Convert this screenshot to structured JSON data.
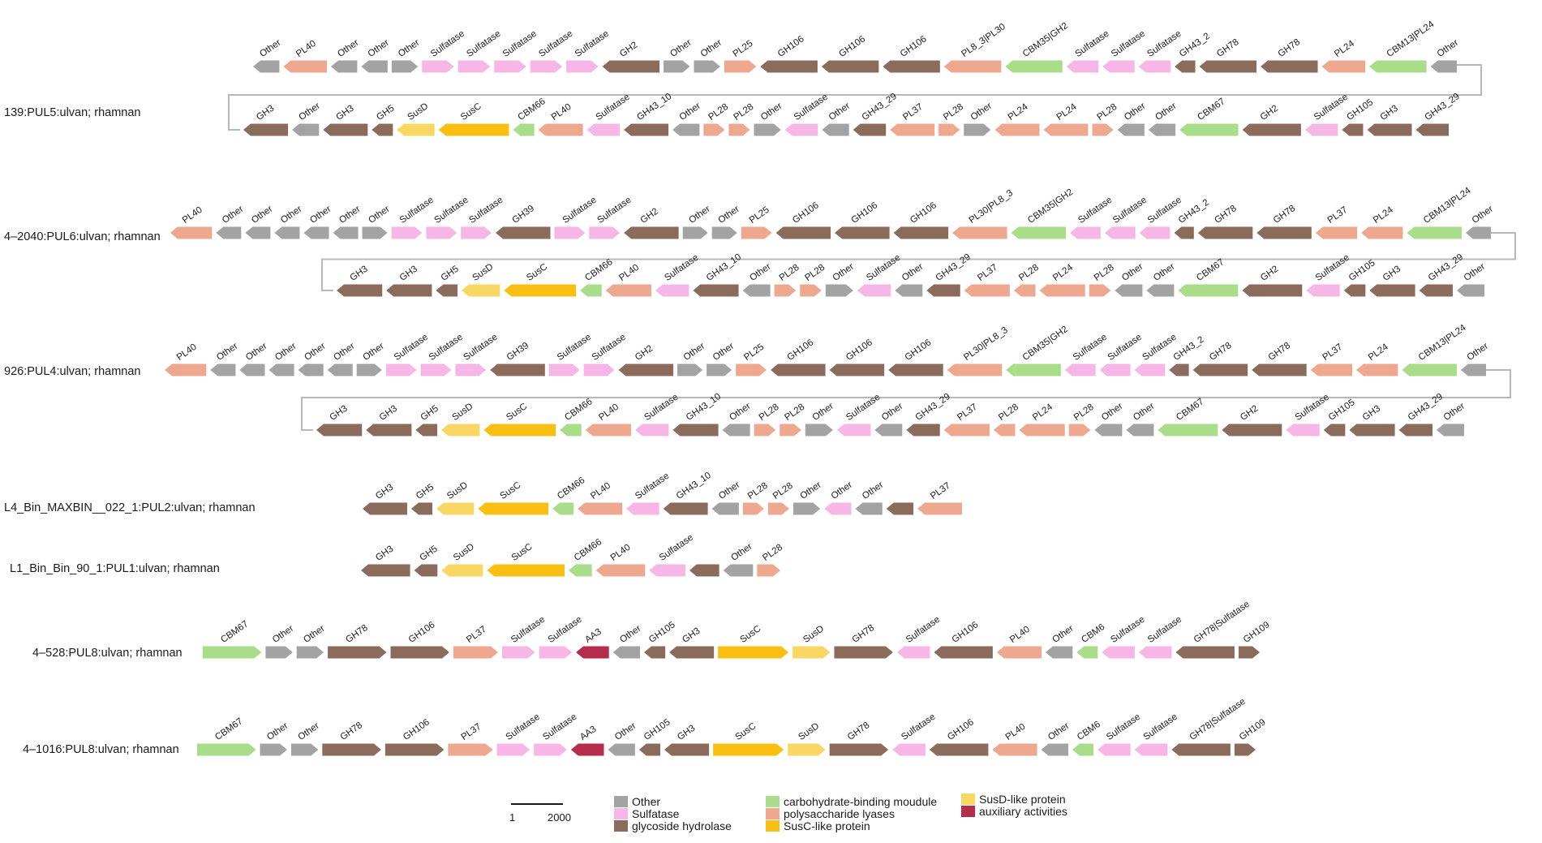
{
  "colors": {
    "Other": "#a3a3a3",
    "Sulfatase": "#f6b7e6",
    "GH": "#8b6b5c",
    "CBM": "#a9dd8a",
    "PL": "#eea88f",
    "SusC": "#f9c013",
    "SusD": "#f8d765",
    "AA": "#b52c4c",
    "connector": "#b8b8b8"
  },
  "pul_labels": [
    "139:PUL5:ulvan; rhamnan",
    "4–2040:PUL6:ulvan; rhamnan",
    "926:PUL4:ulvan; rhamnan",
    "L4_Bin_MAXBIN__022_1:PUL2:ulvan; rhamnan",
    "L1_Bin_Bin_90_1:PUL1:ulvan; rhamnan",
    "4–528:PUL8:ulvan; rhamnan",
    "4–1016:PUL8:ulvan; rhamnan"
  ],
  "loci": {
    "pul5_row1": [
      [
        "Other",
        "Other",
        "L"
      ],
      [
        "PL40",
        "PL",
        "L"
      ],
      [
        "Other",
        "Other",
        "L"
      ],
      [
        "Other",
        "Other",
        "L"
      ],
      [
        "Other",
        "Other",
        "R"
      ],
      [
        "Sulfatase",
        "Sulfatase",
        "R"
      ],
      [
        "Sulfatase",
        "Sulfatase",
        "R"
      ],
      [
        "Sulfatase",
        "Sulfatase",
        "R"
      ],
      [
        "Sulfatase",
        "Sulfatase",
        "R"
      ],
      [
        "Sulfatase",
        "Sulfatase",
        "R"
      ],
      [
        "GH2",
        "GH",
        "L"
      ],
      [
        "Other",
        "Other",
        "R"
      ],
      [
        "Other",
        "Other",
        "R"
      ],
      [
        "PL25",
        "PL",
        "R"
      ],
      [
        "GH106",
        "GH",
        "L"
      ],
      [
        "GH106",
        "GH",
        "L"
      ],
      [
        "GH106",
        "GH",
        "L"
      ],
      [
        "PL8_3|PL30",
        "PL",
        "L"
      ],
      [
        "CBM35|GH2",
        "CBM",
        "L"
      ],
      [
        "Sulfatase",
        "Sulfatase",
        "L"
      ],
      [
        "Sulfatase",
        "Sulfatase",
        "L"
      ],
      [
        "Sulfatase",
        "Sulfatase",
        "L"
      ],
      [
        "GH43_2",
        "GH",
        "L"
      ],
      [
        "GH78",
        "GH",
        "L"
      ],
      [
        "GH78",
        "GH",
        "L"
      ],
      [
        "PL24",
        "PL",
        "L"
      ],
      [
        "CBM13|PL24",
        "CBM",
        "L"
      ],
      [
        "Other",
        "Other",
        "L"
      ]
    ],
    "pul5_row2": [
      [
        "GH3",
        "GH",
        "L"
      ],
      [
        "Other",
        "Other",
        "L"
      ],
      [
        "GH3",
        "GH",
        "L"
      ],
      [
        "GH5",
        "GH",
        "L"
      ],
      [
        "SusD",
        "SusD",
        "L"
      ],
      [
        "SusC",
        "SusC",
        "L"
      ],
      [
        "CBM66",
        "CBM",
        "L"
      ],
      [
        "PL40",
        "PL",
        "L"
      ],
      [
        "Sulfatase",
        "Sulfatase",
        "L"
      ],
      [
        "GH43_10",
        "GH",
        "L"
      ],
      [
        "Other",
        "Other",
        "L"
      ],
      [
        "PL28",
        "PL",
        "R"
      ],
      [
        "PL28",
        "PL",
        "R"
      ],
      [
        "Other",
        "Other",
        "R"
      ],
      [
        "Sulfatase",
        "Sulfatase",
        "L"
      ],
      [
        "Other",
        "Other",
        "L"
      ],
      [
        "GH43_29",
        "GH",
        "L"
      ],
      [
        "PL37",
        "PL",
        "L"
      ],
      [
        "PL28",
        "PL",
        "R"
      ],
      [
        "Other",
        "Other",
        "R"
      ],
      [
        "PL24",
        "PL",
        "L"
      ],
      [
        "PL24",
        "PL",
        "L"
      ],
      [
        "PL28",
        "PL",
        "R"
      ],
      [
        "Other",
        "Other",
        "L"
      ],
      [
        "Other",
        "Other",
        "L"
      ],
      [
        "CBM67",
        "CBM",
        "L"
      ],
      [
        "GH2",
        "GH",
        "L"
      ],
      [
        "Sulfatase",
        "Sulfatase",
        "L"
      ],
      [
        "GH105",
        "GH",
        "L"
      ],
      [
        "GH3",
        "GH",
        "L"
      ],
      [
        "GH43_29",
        "GH",
        "L"
      ]
    ],
    "pul6_row1": [
      [
        "PL40",
        "PL",
        "L"
      ],
      [
        "Other",
        "Other",
        "L"
      ],
      [
        "Other",
        "Other",
        "L"
      ],
      [
        "Other",
        "Other",
        "L"
      ],
      [
        "Other",
        "Other",
        "L"
      ],
      [
        "Other",
        "Other",
        "L"
      ],
      [
        "Other",
        "Other",
        "R"
      ],
      [
        "Sulfatase",
        "Sulfatase",
        "R"
      ],
      [
        "Sulfatase",
        "Sulfatase",
        "R"
      ],
      [
        "Sulfatase",
        "Sulfatase",
        "R"
      ],
      [
        "GH39",
        "GH",
        "L"
      ],
      [
        "Sulfatase",
        "Sulfatase",
        "R"
      ],
      [
        "Sulfatase",
        "Sulfatase",
        "R"
      ],
      [
        "GH2",
        "GH",
        "L"
      ],
      [
        "Other",
        "Other",
        "R"
      ],
      [
        "Other",
        "Other",
        "R"
      ],
      [
        "PL25",
        "PL",
        "R"
      ],
      [
        "GH106",
        "GH",
        "L"
      ],
      [
        "GH106",
        "GH",
        "L"
      ],
      [
        "GH106",
        "GH",
        "L"
      ],
      [
        "PL30|PL8_3",
        "PL",
        "L"
      ],
      [
        "CBM35|GH2",
        "CBM",
        "L"
      ],
      [
        "Sulfatase",
        "Sulfatase",
        "L"
      ],
      [
        "Sulfatase",
        "Sulfatase",
        "L"
      ],
      [
        "Sulfatase",
        "Sulfatase",
        "L"
      ],
      [
        "GH43_2",
        "GH",
        "L"
      ],
      [
        "GH78",
        "GH",
        "L"
      ],
      [
        "GH78",
        "GH",
        "L"
      ],
      [
        "PL37",
        "PL",
        "L"
      ],
      [
        "PL24",
        "PL",
        "L"
      ],
      [
        "CBM13|PL24",
        "CBM",
        "L"
      ],
      [
        "Other",
        "Other",
        "L"
      ]
    ],
    "pul6_row2": [
      [
        "GH3",
        "GH",
        "L"
      ],
      [
        "GH3",
        "GH",
        "L"
      ],
      [
        "GH5",
        "GH",
        "L"
      ],
      [
        "SusD",
        "SusD",
        "L"
      ],
      [
        "SusC",
        "SusC",
        "L"
      ],
      [
        "CBM66",
        "CBM",
        "L"
      ],
      [
        "PL40",
        "PL",
        "L"
      ],
      [
        "Sulfatase",
        "Sulfatase",
        "L"
      ],
      [
        "GH43_10",
        "GH",
        "L"
      ],
      [
        "Other",
        "Other",
        "L"
      ],
      [
        "PL28",
        "PL",
        "R"
      ],
      [
        "PL28",
        "PL",
        "R"
      ],
      [
        "Other",
        "Other",
        "R"
      ],
      [
        "Sulfatase",
        "Sulfatase",
        "L"
      ],
      [
        "Other",
        "Other",
        "L"
      ],
      [
        "GH43_29",
        "GH",
        "L"
      ],
      [
        "PL37",
        "PL",
        "L"
      ],
      [
        "PL28",
        "PL",
        "L"
      ],
      [
        "PL24",
        "PL",
        "L"
      ],
      [
        "PL28",
        "PL",
        "R"
      ],
      [
        "Other",
        "Other",
        "L"
      ],
      [
        "Other",
        "Other",
        "L"
      ],
      [
        "CBM67",
        "CBM",
        "L"
      ],
      [
        "GH2",
        "GH",
        "L"
      ],
      [
        "Sulfatase",
        "Sulfatase",
        "L"
      ],
      [
        "GH105",
        "GH",
        "L"
      ],
      [
        "GH3",
        "GH",
        "L"
      ],
      [
        "GH43_29",
        "GH",
        "L"
      ],
      [
        "Other",
        "Other",
        "L"
      ]
    ],
    "pul4_row1": [
      [
        "PL40",
        "PL",
        "L"
      ],
      [
        "Other",
        "Other",
        "L"
      ],
      [
        "Other",
        "Other",
        "L"
      ],
      [
        "Other",
        "Other",
        "L"
      ],
      [
        "Other",
        "Other",
        "L"
      ],
      [
        "Other",
        "Other",
        "L"
      ],
      [
        "Other",
        "Other",
        "R"
      ],
      [
        "Sulfatase",
        "Sulfatase",
        "R"
      ],
      [
        "Sulfatase",
        "Sulfatase",
        "R"
      ],
      [
        "Sulfatase",
        "Sulfatase",
        "R"
      ],
      [
        "GH39",
        "GH",
        "L"
      ],
      [
        "Sulfatase",
        "Sulfatase",
        "R"
      ],
      [
        "Sulfatase",
        "Sulfatase",
        "R"
      ],
      [
        "GH2",
        "GH",
        "L"
      ],
      [
        "Other",
        "Other",
        "R"
      ],
      [
        "Other",
        "Other",
        "R"
      ],
      [
        "PL25",
        "PL",
        "R"
      ],
      [
        "GH106",
        "GH",
        "L"
      ],
      [
        "GH106",
        "GH",
        "L"
      ],
      [
        "GH106",
        "GH",
        "L"
      ],
      [
        "PL30|PL8_3",
        "PL",
        "L"
      ],
      [
        "CBM35|GH2",
        "CBM",
        "L"
      ],
      [
        "Sulfatase",
        "Sulfatase",
        "L"
      ],
      [
        "Sulfatase",
        "Sulfatase",
        "L"
      ],
      [
        "Sulfatase",
        "Sulfatase",
        "L"
      ],
      [
        "GH43_2",
        "GH",
        "L"
      ],
      [
        "GH78",
        "GH",
        "L"
      ],
      [
        "GH78",
        "GH",
        "L"
      ],
      [
        "PL37",
        "PL",
        "L"
      ],
      [
        "PL24",
        "PL",
        "L"
      ],
      [
        "CBM13|PL24",
        "CBM",
        "L"
      ],
      [
        "Other",
        "Other",
        "L"
      ]
    ],
    "pul4_row2": [
      [
        "GH3",
        "GH",
        "L"
      ],
      [
        "GH3",
        "GH",
        "L"
      ],
      [
        "GH5",
        "GH",
        "L"
      ],
      [
        "SusD",
        "SusD",
        "L"
      ],
      [
        "SusC",
        "SusC",
        "L"
      ],
      [
        "CBM66",
        "CBM",
        "L"
      ],
      [
        "PL40",
        "PL",
        "L"
      ],
      [
        "Sulfatase",
        "Sulfatase",
        "L"
      ],
      [
        "GH43_10",
        "GH",
        "L"
      ],
      [
        "Other",
        "Other",
        "L"
      ],
      [
        "PL28",
        "PL",
        "R"
      ],
      [
        "PL28",
        "PL",
        "R"
      ],
      [
        "Other",
        "Other",
        "R"
      ],
      [
        "Sulfatase",
        "Sulfatase",
        "L"
      ],
      [
        "Other",
        "Other",
        "L"
      ],
      [
        "GH43_29",
        "GH",
        "L"
      ],
      [
        "PL37",
        "PL",
        "L"
      ],
      [
        "PL28",
        "PL",
        "L"
      ],
      [
        "PL24",
        "PL",
        "L"
      ],
      [
        "PL28",
        "PL",
        "R"
      ],
      [
        "Other",
        "Other",
        "L"
      ],
      [
        "Other",
        "Other",
        "L"
      ],
      [
        "CBM67",
        "CBM",
        "L"
      ],
      [
        "GH2",
        "GH",
        "L"
      ],
      [
        "Sulfatase",
        "Sulfatase",
        "L"
      ],
      [
        "GH105",
        "GH",
        "L"
      ],
      [
        "GH3",
        "GH",
        "L"
      ],
      [
        "GH43_29",
        "GH",
        "L"
      ],
      [
        "Other",
        "Other",
        "L"
      ]
    ],
    "pul2": [
      [
        "GH3",
        "GH",
        "L"
      ],
      [
        "GH5",
        "GH",
        "L"
      ],
      [
        "SusD",
        "SusD",
        "L"
      ],
      [
        "SusC",
        "SusC",
        "L"
      ],
      [
        "CBM66",
        "CBM",
        "L"
      ],
      [
        "PL40",
        "PL",
        "L"
      ],
      [
        "Sulfatase",
        "Sulfatase",
        "L"
      ],
      [
        "GH43_10",
        "GH",
        "L"
      ],
      [
        "Other",
        "Other",
        "L"
      ],
      [
        "PL28",
        "PL",
        "R"
      ],
      [
        "PL28",
        "PL",
        "R"
      ],
      [
        "Other",
        "Other",
        "R"
      ],
      [
        "Other",
        "Sulfatase",
        "L"
      ],
      [
        "Other",
        "Other",
        "L"
      ],
      [
        "",
        "GH",
        "L"
      ],
      [
        "PL37",
        "PL",
        "L"
      ]
    ],
    "pul1": [
      [
        "GH3",
        "GH",
        "L"
      ],
      [
        "GH5",
        "GH",
        "L"
      ],
      [
        "SusD",
        "SusD",
        "L"
      ],
      [
        "SusC",
        "SusC",
        "L"
      ],
      [
        "CBM66",
        "CBM",
        "L"
      ],
      [
        "PL40",
        "PL",
        "L"
      ],
      [
        "Sulfatase",
        "Sulfatase",
        "L"
      ],
      [
        "",
        "GH",
        "L"
      ],
      [
        "Other",
        "Other",
        "L"
      ],
      [
        "PL28",
        "PL",
        "R"
      ]
    ],
    "pul8a": [
      [
        "CBM67",
        "CBM",
        "R"
      ],
      [
        "Other",
        "Other",
        "R"
      ],
      [
        "Other",
        "Other",
        "R"
      ],
      [
        "GH78",
        "GH",
        "R"
      ],
      [
        "GH106",
        "GH",
        "R"
      ],
      [
        "PL37",
        "PL",
        "R"
      ],
      [
        "Sulfatase",
        "Sulfatase",
        "R"
      ],
      [
        "Sulfatase",
        "Sulfatase",
        "R"
      ],
      [
        "AA3",
        "AA",
        "L"
      ],
      [
        "Other",
        "Other",
        "L"
      ],
      [
        "GH105",
        "GH",
        "L"
      ],
      [
        "GH3",
        "GH",
        "L"
      ],
      [
        "SusC",
        "SusC",
        "R"
      ],
      [
        "SusD",
        "SusD",
        "R"
      ],
      [
        "GH78",
        "GH",
        "R"
      ],
      [
        "Sulfatase",
        "Sulfatase",
        "L"
      ],
      [
        "GH106",
        "GH",
        "L"
      ],
      [
        "PL40",
        "PL",
        "L"
      ],
      [
        "Other",
        "Other",
        "L"
      ],
      [
        "CBM6",
        "CBM",
        "L"
      ],
      [
        "Sulfatase",
        "Sulfatase",
        "L"
      ],
      [
        "Sulfatase",
        "Sulfatase",
        "L"
      ],
      [
        "GH78|Sulfatase",
        "GH",
        "L"
      ],
      [
        "GH109",
        "GH",
        "R"
      ]
    ],
    "pul8b": [
      [
        "CBM67",
        "CBM",
        "R"
      ],
      [
        "Other",
        "Other",
        "R"
      ],
      [
        "Other",
        "Other",
        "R"
      ],
      [
        "GH78",
        "GH",
        "R"
      ],
      [
        "GH106",
        "GH",
        "R"
      ],
      [
        "PL37",
        "PL",
        "R"
      ],
      [
        "Sulfatase",
        "Sulfatase",
        "R"
      ],
      [
        "Sulfatase",
        "Sulfatase",
        "R"
      ],
      [
        "AA3",
        "AA",
        "L"
      ],
      [
        "Other",
        "Other",
        "L"
      ],
      [
        "GH105",
        "GH",
        "L"
      ],
      [
        "GH3",
        "GH",
        "L"
      ],
      [
        "SusC",
        "SusC",
        "R"
      ],
      [
        "SusD",
        "SusD",
        "R"
      ],
      [
        "GH78",
        "GH",
        "R"
      ],
      [
        "Sulfatase",
        "Sulfatase",
        "L"
      ],
      [
        "GH106",
        "GH",
        "L"
      ],
      [
        "PL40",
        "PL",
        "L"
      ],
      [
        "Other",
        "Other",
        "L"
      ],
      [
        "CBM6",
        "CBM",
        "L"
      ],
      [
        "Sulfatase",
        "Sulfatase",
        "L"
      ],
      [
        "Sulfatase",
        "Sulfatase",
        "L"
      ],
      [
        "GH78|Sulfatase",
        "GH",
        "L"
      ],
      [
        "GH109",
        "GH",
        "R"
      ]
    ]
  },
  "legend": [
    {
      "label": "Other",
      "cat": "Other"
    },
    {
      "label": "Sulfatase",
      "cat": "Sulfatase"
    },
    {
      "label": "glycoside hydrolase",
      "cat": "GH"
    },
    {
      "label": "carbohydrate-binding moudule",
      "cat": "CBM"
    },
    {
      "label": "polysaccharide lyases",
      "cat": "PL"
    },
    {
      "label": "SusC-like protein",
      "cat": "SusC"
    },
    {
      "label": "SusD-like protein",
      "cat": "SusD"
    },
    {
      "label": "auxiliary activities",
      "cat": "AA"
    }
  ],
  "scale": {
    "start": "1",
    "end": "2000"
  }
}
